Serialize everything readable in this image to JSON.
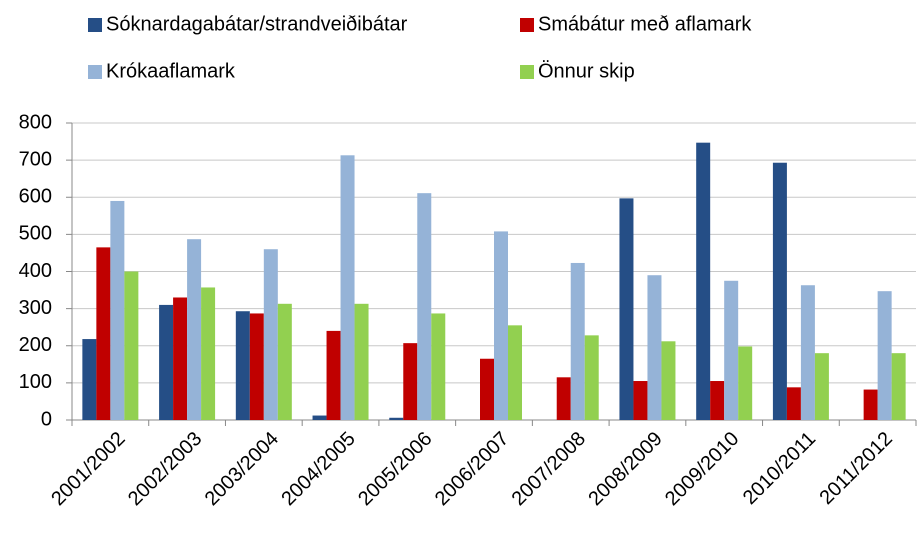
{
  "chart_data": {
    "type": "bar",
    "categories": [
      "2001/2002",
      "2002/2003",
      "2003/2004",
      "2004/2005",
      "2005/2006",
      "2006/2007",
      "2007/2008",
      "2008/2009",
      "2009/2010",
      "2010/2011",
      "2011/2012"
    ],
    "series": [
      {
        "name": "Sóknardagabátar/strandveiðibátar",
        "color": "#254e86",
        "values": [
          218,
          310,
          293,
          12,
          6,
          0,
          0,
          597,
          747,
          693,
          0
        ]
      },
      {
        "name": "Smábátur með aflamark",
        "color": "#c00000",
        "values": [
          465,
          330,
          287,
          240,
          207,
          165,
          115,
          105,
          105,
          88,
          82
        ]
      },
      {
        "name": "Krókaaflamark",
        "color": "#95b3d7",
        "values": [
          590,
          487,
          460,
          713,
          611,
          508,
          423,
          390,
          375,
          363,
          347
        ]
      },
      {
        "name": "Önnur skip",
        "color": "#92d050",
        "values": [
          400,
          357,
          313,
          313,
          287,
          255,
          228,
          212,
          198,
          180,
          180
        ]
      }
    ],
    "ylim": [
      0,
      800
    ],
    "yticks": [
      0,
      100,
      200,
      300,
      400,
      500,
      600,
      700,
      800
    ],
    "grid": true,
    "legend": "top"
  }
}
